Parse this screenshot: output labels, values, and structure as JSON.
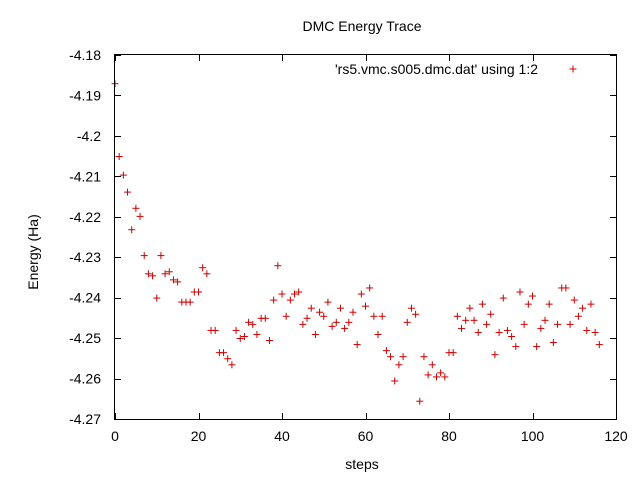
{
  "chart_data": {
    "type": "scatter",
    "title": "DMC Energy Trace",
    "xlabel": "steps",
    "ylabel": "Energy (Ha)",
    "xlim": [
      0,
      120
    ],
    "ylim": [
      -4.27,
      -4.18
    ],
    "xticks": [
      0,
      20,
      40,
      60,
      80,
      100,
      120
    ],
    "xtick_labels": [
      "0",
      "20",
      "40",
      "60",
      "80",
      "100",
      "120"
    ],
    "yticks": [
      -4.27,
      -4.26,
      -4.25,
      -4.24,
      -4.23,
      -4.22,
      -4.21,
      -4.2,
      -4.19,
      -4.18
    ],
    "ytick_labels": [
      "-4.27",
      "-4.26",
      "-4.25",
      "-4.24",
      "-4.23",
      "-4.22",
      "-4.21",
      "-4.2",
      "-4.19",
      "-4.18"
    ],
    "grid": false,
    "legend": "top-right",
    "marker": "plus",
    "color": "#cc0000",
    "series": [
      {
        "name": "'rs5.vmc.s005.dmc.dat' using 1:2",
        "x": [
          0,
          1,
          2,
          3,
          4,
          5,
          6,
          7,
          8,
          9,
          10,
          11,
          12,
          13,
          14,
          15,
          16,
          17,
          18,
          19,
          20,
          21,
          22,
          23,
          24,
          25,
          26,
          27,
          28,
          29,
          30,
          31,
          32,
          33,
          34,
          35,
          36,
          37,
          38,
          39,
          40,
          41,
          42,
          43,
          44,
          45,
          46,
          47,
          48,
          49,
          50,
          51,
          52,
          53,
          54,
          55,
          56,
          57,
          58,
          59,
          60,
          61,
          62,
          63,
          64,
          65,
          66,
          67,
          68,
          69,
          70,
          71,
          72,
          73,
          74,
          75,
          76,
          77,
          78,
          79,
          80,
          81,
          82,
          83,
          84,
          85,
          86,
          87,
          88,
          89,
          90,
          91,
          92,
          93,
          94,
          95,
          96,
          97,
          98,
          99,
          100,
          101,
          102,
          103,
          104,
          105,
          106,
          107,
          108,
          109,
          110,
          111,
          112,
          113,
          114,
          115,
          116
        ],
        "y": [
          -4.1871,
          -4.2051,
          -4.2097,
          -4.2139,
          -4.2232,
          -4.2179,
          -4.2199,
          -4.2296,
          -4.2341,
          -4.2346,
          -4.2401,
          -4.2296,
          -4.2341,
          -4.2336,
          -4.2356,
          -4.2361,
          -4.2411,
          -4.2411,
          -4.2411,
          -4.2386,
          -4.2386,
          -4.2326,
          -4.2341,
          -4.2481,
          -4.2481,
          -4.2536,
          -4.2536,
          -4.2551,
          -4.2566,
          -4.2481,
          -4.2501,
          -4.2496,
          -4.2461,
          -4.2466,
          -4.2491,
          -4.2451,
          -4.2451,
          -4.2506,
          -4.2406,
          -4.2321,
          -4.2391,
          -4.2446,
          -4.2406,
          -4.2391,
          -4.2386,
          -4.2466,
          -4.2451,
          -4.2426,
          -4.2491,
          -4.2436,
          -4.2446,
          -4.2411,
          -4.2471,
          -4.2461,
          -4.2426,
          -4.2476,
          -4.2461,
          -4.2436,
          -4.2516,
          -4.2391,
          -4.2421,
          -4.2376,
          -4.2446,
          -4.2491,
          -4.2446,
          -4.2531,
          -4.2546,
          -4.2606,
          -4.2566,
          -4.2546,
          -4.2461,
          -4.2426,
          -4.2441,
          -4.2656,
          -4.2546,
          -4.2591,
          -4.2566,
          -4.2596,
          -4.2586,
          -4.2596,
          -4.2536,
          -4.2536,
          -4.2446,
          -4.2476,
          -4.2456,
          -4.2426,
          -4.2456,
          -4.2486,
          -4.2416,
          -4.2466,
          -4.2441,
          -4.2541,
          -4.2486,
          -4.2401,
          -4.2481,
          -4.2496,
          -4.2521,
          -4.2386,
          -4.2466,
          -4.2416,
          -4.2396,
          -4.2521,
          -4.2476,
          -4.2456,
          -4.2416,
          -4.2511,
          -4.2466,
          -4.2376,
          -4.2376,
          -4.2466,
          -4.2406,
          -4.2446,
          -4.2426,
          -4.2481,
          -4.2416,
          -4.2486,
          -4.2516
        ]
      }
    ]
  }
}
